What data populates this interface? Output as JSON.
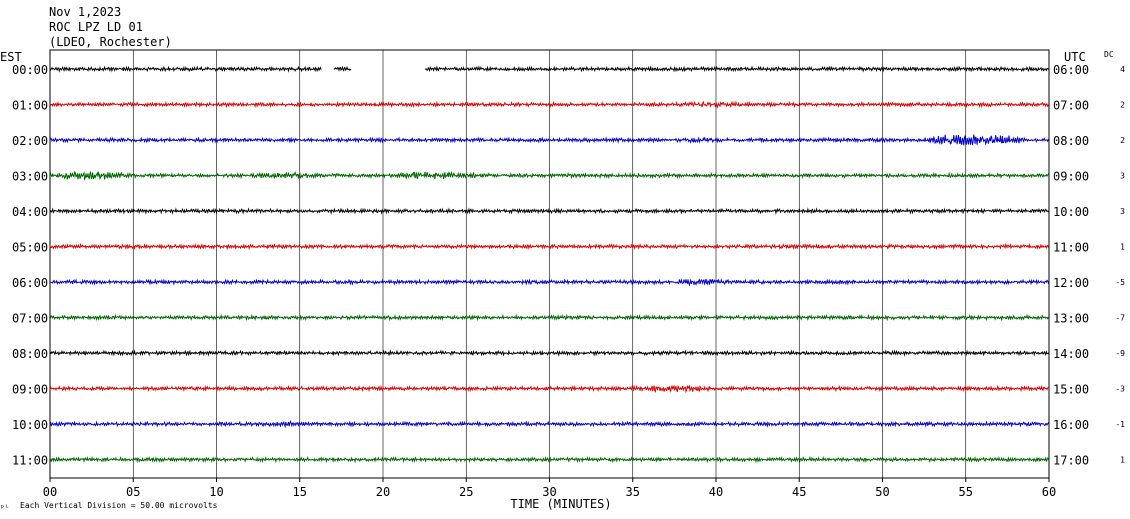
{
  "header": {
    "date": "Nov 1,2023",
    "station": "ROC LPZ LD 01",
    "network": "(LDEO, Rochester)"
  },
  "labels": {
    "left_zone": "EST",
    "right_zone": "UTC",
    "dc": "DC",
    "footer_note": "Each Vertical Division =   50.00 microvolts"
  },
  "chart_data": {
    "type": "line",
    "title": "",
    "xlabel": "TIME (MINUTES)",
    "xlim": [
      0,
      60
    ],
    "xticks": [
      0,
      5,
      10,
      15,
      20,
      25,
      30,
      35,
      40,
      45,
      50,
      55,
      60
    ],
    "xtick_labels": [
      "00",
      "05",
      "10",
      "15",
      "20",
      "25",
      "30",
      "35",
      "40",
      "45",
      "50",
      "55",
      "60"
    ],
    "colors_cycle": [
      "#000000",
      "#dd0000",
      "#0000cc",
      "#006600"
    ],
    "grid": true,
    "rows": [
      {
        "est": "00:00",
        "utc": "06:00",
        "dc": "4",
        "color": "#000000",
        "gaps": [
          [
            16.3,
            17.0
          ],
          [
            18.1,
            22.5
          ]
        ],
        "bursts": []
      },
      {
        "est": "01:00",
        "utc": "07:00",
        "dc": "2",
        "color": "#dd0000",
        "gaps": [],
        "bursts": [
          [
            38,
            42,
            1.4
          ]
        ]
      },
      {
        "est": "02:00",
        "utc": "08:00",
        "dc": "2",
        "color": "#0000cc",
        "gaps": [],
        "bursts": [
          [
            38,
            40,
            1.6
          ],
          [
            52.5,
            58.5,
            3.0
          ]
        ]
      },
      {
        "est": "03:00",
        "utc": "09:00",
        "dc": "3",
        "color": "#006600",
        "gaps": [],
        "bursts": [
          [
            0,
            4.5,
            2.3
          ],
          [
            12,
            16,
            1.6
          ],
          [
            20.5,
            26,
            2.0
          ]
        ]
      },
      {
        "est": "04:00",
        "utc": "10:00",
        "dc": "3",
        "color": "#000000",
        "gaps": [],
        "bursts": []
      },
      {
        "est": "05:00",
        "utc": "11:00",
        "dc": "1",
        "color": "#dd0000",
        "gaps": [],
        "bursts": []
      },
      {
        "est": "06:00",
        "utc": "12:00",
        "dc": "-5",
        "color": "#0000cc",
        "gaps": [],
        "bursts": [
          [
            37.5,
            41,
            1.7
          ]
        ]
      },
      {
        "est": "07:00",
        "utc": "13:00",
        "dc": "-7",
        "color": "#006600",
        "gaps": [],
        "bursts": []
      },
      {
        "est": "08:00",
        "utc": "14:00",
        "dc": "-9",
        "color": "#000000",
        "gaps": [],
        "bursts": []
      },
      {
        "est": "09:00",
        "utc": "15:00",
        "dc": "-3",
        "color": "#dd0000",
        "gaps": [],
        "bursts": [
          [
            35,
            40,
            1.8
          ]
        ]
      },
      {
        "est": "10:00",
        "utc": "16:00",
        "dc": "-1",
        "color": "#0000cc",
        "gaps": [],
        "bursts": [
          [
            12.5,
            15,
            1.4
          ]
        ]
      },
      {
        "est": "11:00",
        "utc": "17:00",
        "dc": "1",
        "color": "#006600",
        "gaps": [],
        "bursts": []
      }
    ]
  }
}
